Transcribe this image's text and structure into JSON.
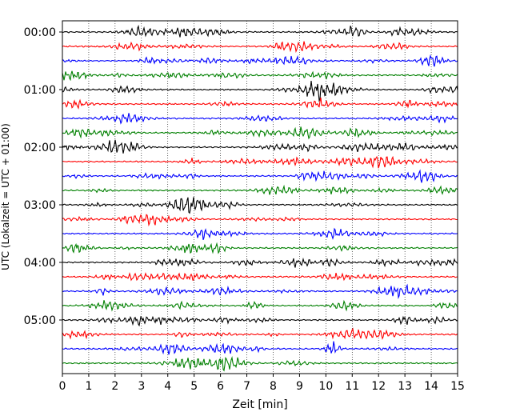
{
  "chart_data": {
    "type": "line",
    "subtype": "helicorder",
    "xlabel": "Zeit  [min]",
    "ylabel": "UTC (Lokalzeit = UTC + 01:00)",
    "xlim": [
      0,
      15
    ],
    "xticks": [
      "0",
      "1",
      "2",
      "3",
      "4",
      "5",
      "6",
      "7",
      "8",
      "9",
      "10",
      "11",
      "12",
      "13",
      "14",
      "15"
    ],
    "yticks": [
      {
        "label": "00:00",
        "trace": 0
      },
      {
        "label": "01:00",
        "trace": 4
      },
      {
        "label": "02:00",
        "trace": 8
      },
      {
        "label": "03:00",
        "trace": 12
      },
      {
        "label": "04:00",
        "trace": 16
      },
      {
        "label": "05:00",
        "trace": 20
      }
    ],
    "trace_minutes": 15,
    "trace_count": 24,
    "trace_colors": [
      "#000000",
      "#ff0000",
      "#0000ff",
      "#008000"
    ],
    "grid": "vertical-dotted"
  }
}
